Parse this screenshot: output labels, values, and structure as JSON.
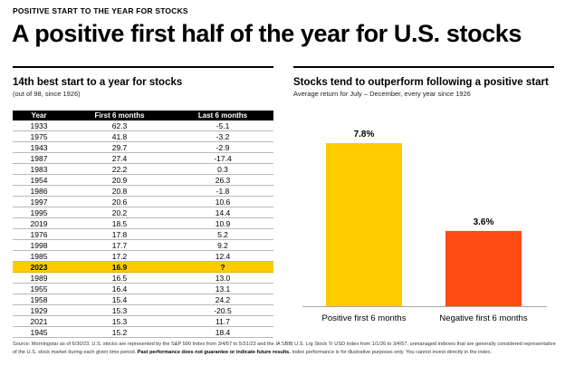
{
  "header": {
    "kicker": "POSITIVE START TO THE YEAR FOR STOCKS",
    "headline": "A positive first half of the year for U.S. stocks"
  },
  "table_panel": {
    "title": "14th best start to a year for stocks",
    "subtitle": "(out of 98, since 1926)",
    "columns": [
      "Year",
      "First 6 months",
      "Last 6 months"
    ],
    "highlight_year": "2023",
    "rows": [
      [
        "1933",
        "62.3",
        "-5.1"
      ],
      [
        "1975",
        "41.8",
        "-3.2"
      ],
      [
        "1943",
        "29.7",
        "-2.9"
      ],
      [
        "1987",
        "27.4",
        "-17.4"
      ],
      [
        "1983",
        "22.2",
        "0.3"
      ],
      [
        "1954",
        "20.9",
        "26.3"
      ],
      [
        "1986",
        "20.8",
        "-1.8"
      ],
      [
        "1997",
        "20.6",
        "10.6"
      ],
      [
        "1995",
        "20.2",
        "14.4"
      ],
      [
        "2019",
        "18.5",
        "10.9"
      ],
      [
        "1976",
        "17.8",
        "5.2"
      ],
      [
        "1998",
        "17.7",
        "9.2"
      ],
      [
        "1985",
        "17.2",
        "12.4"
      ],
      [
        "2023",
        "16.9",
        "?"
      ],
      [
        "1989",
        "16.5",
        "13.0"
      ],
      [
        "1955",
        "16.4",
        "13.1"
      ],
      [
        "1958",
        "15.4",
        "24.2"
      ],
      [
        "1929",
        "15.3",
        "-20.5"
      ],
      [
        "2021",
        "15.3",
        "11.7"
      ],
      [
        "1945",
        "15.2",
        "18.4"
      ]
    ]
  },
  "chart_panel": {
    "title": "Stocks tend to outperform following a positive start",
    "subtitle": "Average return for July – December, every year since 1926"
  },
  "chart_data": {
    "type": "bar",
    "title": "Stocks tend to outperform following a positive start",
    "subtitle": "Average return for July – December, every year since 1926",
    "categories": [
      "Positive first 6 months",
      "Negative first 6 months"
    ],
    "values": [
      7.8,
      3.6
    ],
    "data_labels": [
      "7.8%",
      "3.6%"
    ],
    "colors": [
      "#ffcc00",
      "#ff4b14"
    ],
    "ylim": [
      0,
      7.8
    ],
    "grid": false,
    "xlabel": "",
    "ylabel": ""
  },
  "footer": {
    "text": "Source: Morningstar as of 6/30/23. U.S. stocks are represented by the S&P 500 Index from 3/4/57 to 5/31/23 and the IA SBBI U.S. Lrg Stock Tr USD Index from 1/1/26 to 3/4/57, unmanaged indexes that are generally considered representative of the U.S. stock market during each given time period.",
    "bold": "Past performance does not guarantee or indicate future results.",
    "tail": "Index performance is for illustrative purposes only. You cannot invest directly in the index."
  },
  "colors": {
    "highlight": "#ffcc00",
    "positive_bar": "#ffcc00",
    "negative_bar": "#ff4b14",
    "table_header": "#000000"
  }
}
